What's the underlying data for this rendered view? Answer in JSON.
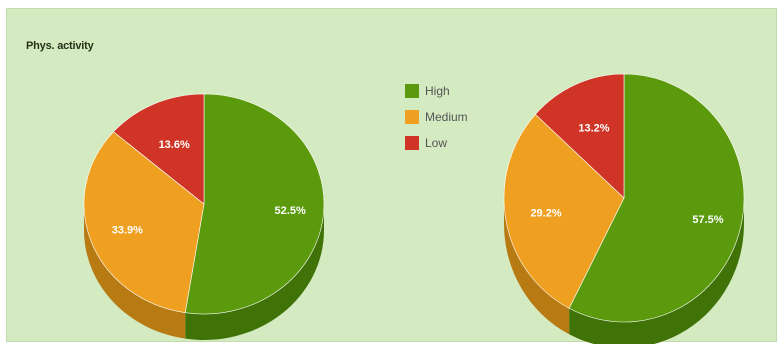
{
  "chart_data": [
    {
      "type": "pie",
      "title": "Phys. activity",
      "categories": [
        "High",
        "Medium",
        "Low"
      ],
      "values": [
        52.5,
        33.9,
        13.6
      ],
      "labels": [
        "52.5%",
        "33.9%",
        "13.6%"
      ],
      "colors": [
        "#5a9a0c",
        "#f0a020",
        "#d03426"
      ],
      "side_colors": [
        "#3f7307",
        "#b87a12",
        "#9a2519"
      ],
      "legend_position": "top-center"
    },
    {
      "type": "pie",
      "title": "",
      "categories": [
        "High",
        "Medium",
        "Low"
      ],
      "values": [
        57.5,
        29.2,
        13.2
      ],
      "labels": [
        "57.5%",
        "29.2%",
        "13.2%"
      ],
      "colors": [
        "#5a9a0c",
        "#f0a020",
        "#d03426"
      ],
      "side_colors": [
        "#3f7307",
        "#b87a12",
        "#9a2519"
      ]
    }
  ],
  "legend": [
    {
      "label": "High",
      "color": "#5a9a0c"
    },
    {
      "label": "Medium",
      "color": "#f0a020"
    },
    {
      "label": "Low",
      "color": "#d03426"
    }
  ]
}
